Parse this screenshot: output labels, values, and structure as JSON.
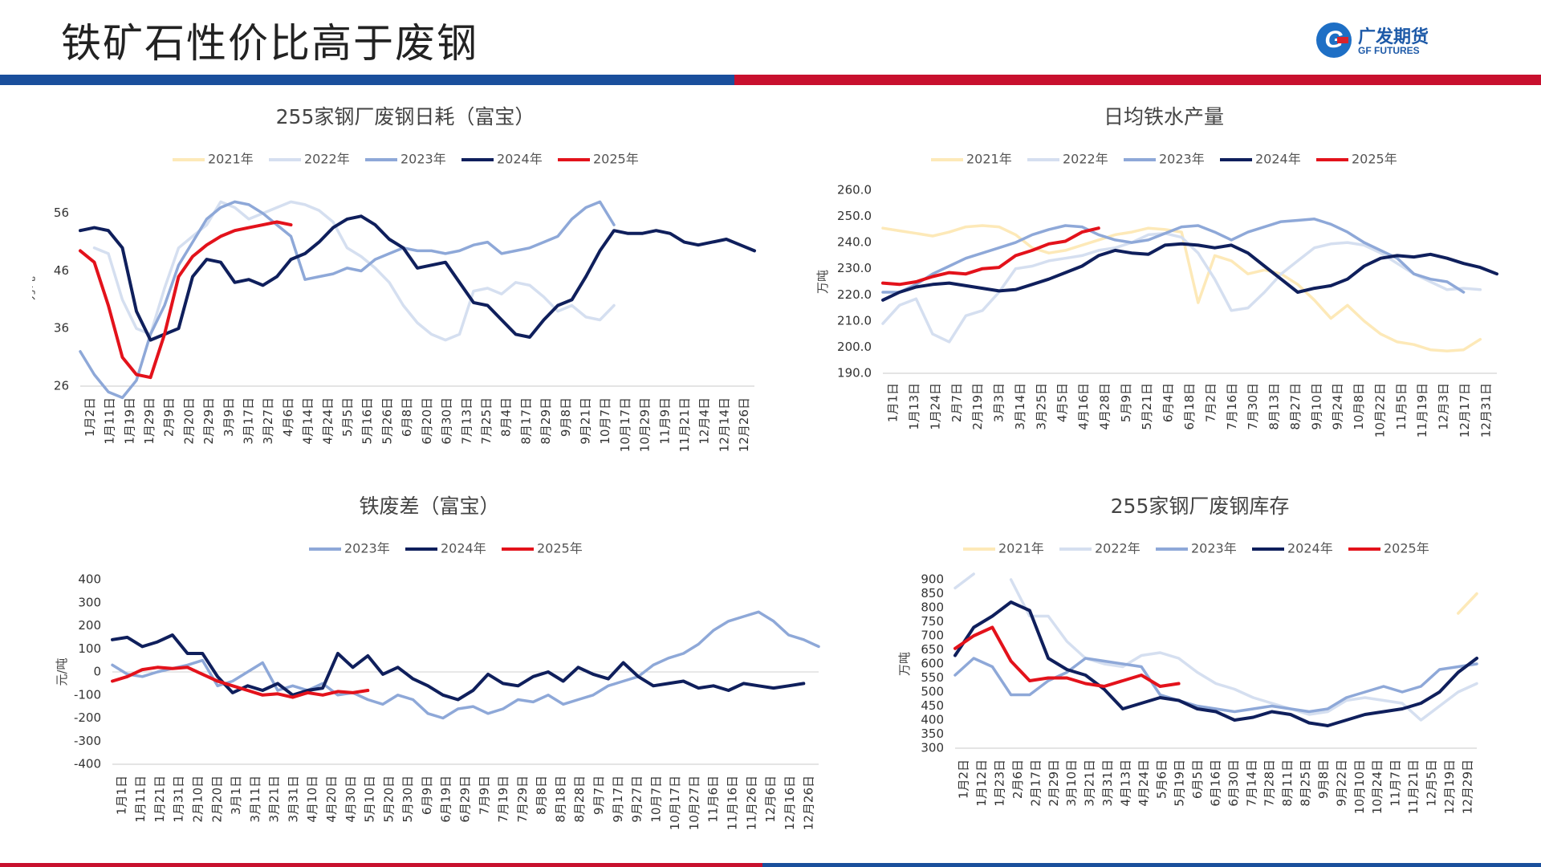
{
  "page": {
    "title": "铁矿石性价比高于废钢",
    "logo_cn": "广发期货",
    "logo_en": "GF FUTURES",
    "colors": {
      "top_band_blue": "#1a4f9c",
      "top_band_red": "#c8102e",
      "bottom_band_red": "#c8102e",
      "bottom_band_blue": "#1a4f9c"
    }
  },
  "chart_data": [
    {
      "type": "line",
      "title": "255家钢厂废钢日耗（富宝）",
      "ylabel": "万吨",
      "ylim": [
        26,
        60
      ],
      "yticks": [
        26,
        36,
        46,
        56
      ],
      "x_labels": [
        "1月2日",
        "1月11日",
        "1月19日",
        "1月29日",
        "2月9日",
        "2月20日",
        "2月29日",
        "3月9日",
        "3月17日",
        "3月27日",
        "4月6日",
        "4月14日",
        "4月24日",
        "5月5日",
        "5月16日",
        "5月26日",
        "6月8日",
        "6月20日",
        "6月30日",
        "7月13日",
        "7月25日",
        "8月4日",
        "8月17日",
        "8月29日",
        "9月8日",
        "9月21日",
        "10月7日",
        "10月17日",
        "10月29日",
        "11月9日",
        "11月21日",
        "12月4日",
        "12月14日",
        "12月26日"
      ],
      "legend": "top",
      "series": [
        {
          "name": "2021年",
          "color": "#fde9b8",
          "values": []
        },
        {
          "name": "2022年",
          "color": "#d5dff0",
          "values": [
            null,
            50.0,
            49.0,
            41.0,
            36.0,
            35.0,
            43.0,
            50.0,
            52.0,
            54.0,
            58.0,
            57.0,
            55.0,
            56.0,
            57.0,
            58.0,
            57.5,
            56.5,
            54.5,
            50.0,
            48.5,
            46.5,
            44.0,
            40.0,
            37.0,
            35.0,
            34.0,
            35.0,
            42.5,
            43.0,
            42.0,
            44.0,
            43.5,
            41.5,
            39.0,
            40.0,
            38.0,
            37.5,
            40.0
          ]
        },
        {
          "name": "2023年",
          "color": "#8ea8d8",
          "values": [
            32.0,
            28.0,
            25.0,
            24.0,
            27.0,
            35.0,
            40.0,
            47.0,
            51.0,
            55.0,
            57.0,
            58.0,
            57.5,
            56.0,
            54.0,
            52.0,
            44.5,
            45.0,
            45.5,
            46.5,
            46.0,
            48.0,
            49.0,
            50.0,
            49.5,
            49.5,
            49.0,
            49.5,
            50.5,
            51.0,
            49.0,
            49.5,
            50.0,
            51.0,
            52.0,
            55.0,
            57.0,
            58.0,
            54.0
          ]
        },
        {
          "name": "2024年",
          "color": "#0f1f5c",
          "values": [
            53.0,
            53.5,
            53.0,
            50.0,
            39.0,
            34.0,
            35.0,
            36.0,
            45.0,
            48.0,
            47.5,
            44.0,
            44.5,
            43.5,
            45.0,
            48.0,
            49.0,
            51.0,
            53.5,
            55.0,
            55.5,
            54.0,
            51.5,
            50.0,
            46.5,
            47.0,
            47.5,
            44.0,
            40.5,
            40.0,
            37.5,
            35.0,
            34.5,
            37.5,
            40.0,
            41.0,
            45.0,
            49.5,
            53.0,
            52.5,
            52.5,
            53.0,
            52.5,
            51.0,
            50.5,
            51.0,
            51.5,
            50.5,
            49.5
          ]
        },
        {
          "name": "2025年",
          "color": "#e3121b",
          "values": [
            49.5,
            47.5,
            40.0,
            31.0,
            28.0,
            27.5,
            35.0,
            45.0,
            48.5,
            50.5,
            52.0,
            53.0,
            53.5,
            54.0,
            54.5,
            54.0
          ]
        }
      ]
    },
    {
      "type": "line",
      "title": "日均铁水产量",
      "ylabel": "万吨",
      "ylim": [
        190,
        260
      ],
      "yticks": [
        "190.0",
        "200.0",
        "210.0",
        "220.0",
        "230.0",
        "240.0",
        "250.0",
        "260.0"
      ],
      "x_labels": [
        "1月1日",
        "1月13日",
        "1月24日",
        "2月7日",
        "2月19日",
        "3月3日",
        "3月14日",
        "3月25日",
        "4月5日",
        "4月16日",
        "4月28日",
        "5月9日",
        "5月21日",
        "6月4日",
        "6月18日",
        "7月2日",
        "7月16日",
        "7月30日",
        "8月13日",
        "8月27日",
        "9月10日",
        "9月24日",
        "10月8日",
        "10月22日",
        "11月5日",
        "11月19日",
        "12月3日",
        "12月17日",
        "12月31日"
      ],
      "legend": "top",
      "series": [
        {
          "name": "2021年",
          "color": "#fde9b8",
          "values": [
            245.5,
            244.5,
            243.5,
            242.5,
            244.0,
            246.0,
            246.5,
            246.0,
            243.0,
            238.0,
            236.0,
            237.0,
            239.0,
            241.0,
            243.0,
            244.0,
            245.5,
            245.0,
            244.0,
            217.0,
            235.0,
            233.0,
            228.0,
            229.5,
            228.0,
            224.0,
            218.0,
            211.0,
            216.0,
            210.0,
            205.0,
            202.0,
            201.0,
            199.0,
            198.5,
            199.0,
            203.0
          ]
        },
        {
          "name": "2022年",
          "color": "#d5dff0",
          "values": [
            209.0,
            216.0,
            218.5,
            205.0,
            202.0,
            212.0,
            214.0,
            221.0,
            230.0,
            231.0,
            233.0,
            234.0,
            235.0,
            237.0,
            238.0,
            240.0,
            243.0,
            243.5,
            242.0,
            236.0,
            226.0,
            214.0,
            215.0,
            221.0,
            228.0,
            233.0,
            238.0,
            239.5,
            240.0,
            239.0,
            236.0,
            232.0,
            228.0,
            225.0,
            222.0,
            222.5,
            222.0
          ]
        },
        {
          "name": "2023年",
          "color": "#8ea8d8",
          "values": [
            221.0,
            221.0,
            224.0,
            228.0,
            231.0,
            234.0,
            236.0,
            238.0,
            240.0,
            243.0,
            245.0,
            246.5,
            246.0,
            243.0,
            241.0,
            240.0,
            241.0,
            243.5,
            246.0,
            246.5,
            244.0,
            241.0,
            244.0,
            246.0,
            248.0,
            248.5,
            249.0,
            247.0,
            244.0,
            240.0,
            237.0,
            234.0,
            228.0,
            226.0,
            225.0,
            221.0
          ]
        },
        {
          "name": "2024年",
          "color": "#0f1f5c",
          "values": [
            218.0,
            221.0,
            223.0,
            224.0,
            224.5,
            223.5,
            222.5,
            221.5,
            222.0,
            224.0,
            226.0,
            228.5,
            231.0,
            235.0,
            237.0,
            236.0,
            235.5,
            239.0,
            239.5,
            239.0,
            238.0,
            239.0,
            236.0,
            231.0,
            226.0,
            221.0,
            222.5,
            223.5,
            226.0,
            231.0,
            234.0,
            235.0,
            234.5,
            235.5,
            234.0,
            232.0,
            230.5,
            228.0
          ]
        },
        {
          "name": "2025年",
          "color": "#e3121b",
          "values": [
            224.5,
            224.0,
            225.0,
            227.0,
            228.5,
            228.0,
            230.0,
            230.5,
            235.0,
            237.0,
            239.5,
            240.5,
            244.0,
            245.5
          ]
        }
      ]
    },
    {
      "type": "line",
      "title": "铁废差（富宝）",
      "ylabel": "元/吨",
      "ylim": [
        -400,
        400
      ],
      "yticks": [
        -400,
        -300,
        -200,
        -100,
        0,
        100,
        200,
        300,
        400
      ],
      "x_labels": [
        "1月1日",
        "1月11日",
        "1月21日",
        "1月31日",
        "2月10日",
        "2月20日",
        "3月1日",
        "3月11日",
        "3月21日",
        "3月31日",
        "4月10日",
        "4月20日",
        "4月30日",
        "5月10日",
        "5月20日",
        "5月30日",
        "6月9日",
        "6月19日",
        "6月29日",
        "7月9日",
        "7月19日",
        "7月29日",
        "8月8日",
        "8月18日",
        "8月28日",
        "9月7日",
        "9月17日",
        "9月27日",
        "10月7日",
        "10月17日",
        "10月27日",
        "11月6日",
        "11月16日",
        "11月26日",
        "12月6日",
        "12月16日",
        "12月26日"
      ],
      "legend": "top",
      "series": [
        {
          "name": "2023年",
          "color": "#8ea8d8",
          "values": [
            30.0,
            -10.0,
            -20.0,
            0.0,
            15.0,
            30.0,
            50.0,
            -60.0,
            -40.0,
            0.0,
            40.0,
            -80.0,
            -60.0,
            -80.0,
            -50.0,
            -100.0,
            -90.0,
            -120.0,
            -140.0,
            -100.0,
            -120.0,
            -180.0,
            -200.0,
            -160.0,
            -150.0,
            -180.0,
            -160.0,
            -120.0,
            -130.0,
            -100.0,
            -140.0,
            -120.0,
            -100.0,
            -60.0,
            -40.0,
            -20.0,
            30.0,
            60.0,
            80.0,
            120.0,
            180.0,
            220.0,
            240.0,
            260.0,
            220.0,
            160.0,
            140.0,
            110.0
          ]
        },
        {
          "name": "2024年",
          "color": "#0f1f5c",
          "values": [
            140.0,
            150.0,
            110.0,
            130.0,
            160.0,
            80.0,
            80.0,
            -20.0,
            -90.0,
            -60.0,
            -80.0,
            -50.0,
            -100.0,
            -80.0,
            -70.0,
            80.0,
            20.0,
            70.0,
            -10.0,
            20.0,
            -30.0,
            -60.0,
            -100.0,
            -120.0,
            -80.0,
            -10.0,
            -50.0,
            -60.0,
            -20.0,
            0.0,
            -40.0,
            20.0,
            -10.0,
            -30.0,
            40.0,
            -20.0,
            -60.0,
            -50.0,
            -40.0,
            -70.0,
            -60.0,
            -80.0,
            -50.0,
            -60.0,
            -70.0,
            -60.0,
            -50.0
          ]
        },
        {
          "name": "2025年",
          "color": "#e3121b",
          "values": [
            -40.0,
            -20.0,
            10.0,
            20.0,
            15.0,
            20.0,
            -10.0,
            -40.0,
            -60.0,
            -80.0,
            -100.0,
            -95.0,
            -110.0,
            -90.0,
            -100.0,
            -85.0,
            -90.0,
            -80.0
          ]
        }
      ]
    },
    {
      "type": "line",
      "title": "255家钢厂废钢库存",
      "ylabel": "万吨",
      "ylim": [
        300,
        900
      ],
      "yticks": [
        300,
        350,
        400,
        450,
        500,
        550,
        600,
        650,
        700,
        750,
        800,
        850,
        900
      ],
      "x_labels": [
        "1月2日",
        "1月12日",
        "1月23日",
        "2月6日",
        "2月17日",
        "2月29日",
        "3月10日",
        "3月21日",
        "3月31日",
        "4月13日",
        "4月24日",
        "5月6日",
        "5月19日",
        "6月5日",
        "6月16日",
        "6月30日",
        "7月14日",
        "7月28日",
        "8月11日",
        "8月25日",
        "9月8日",
        "9月22日",
        "10月10日",
        "10月24日",
        "11月7日",
        "11月21日",
        "12月5日",
        "12月19日",
        "12月29日"
      ],
      "legend": "top",
      "series": [
        {
          "name": "2021年",
          "color": "#fde9b8",
          "values": [
            null,
            null,
            null,
            null,
            null,
            null,
            null,
            null,
            null,
            null,
            null,
            null,
            null,
            null,
            null,
            null,
            null,
            null,
            null,
            null,
            null,
            null,
            null,
            null,
            null,
            null,
            null,
            780.0,
            850.0
          ]
        },
        {
          "name": "2022年",
          "color": "#d5dff0",
          "values": [
            870.0,
            920.0,
            null,
            900.0,
            770.0,
            770.0,
            680.0,
            620.0,
            600.0,
            590.0,
            630.0,
            640.0,
            620.0,
            570.0,
            530.0,
            510.0,
            480.0,
            460.0,
            440.0,
            420.0,
            430.0,
            470.0,
            480.0,
            470.0,
            460.0,
            400.0,
            450.0,
            500.0,
            530.0
          ]
        },
        {
          "name": "2023年",
          "color": "#8ea8d8",
          "values": [
            560.0,
            620.0,
            590.0,
            490.0,
            490.0,
            540.0,
            570.0,
            620.0,
            610.0,
            600.0,
            590.0,
            490.0,
            470.0,
            450.0,
            440.0,
            430.0,
            440.0,
            450.0,
            440.0,
            430.0,
            440.0,
            480.0,
            500.0,
            520.0,
            500.0,
            520.0,
            580.0,
            590.0,
            600.0
          ]
        },
        {
          "name": "2024年",
          "color": "#0f1f5c",
          "values": [
            630.0,
            730.0,
            770.0,
            820.0,
            790.0,
            620.0,
            580.0,
            560.0,
            510.0,
            440.0,
            460.0,
            480.0,
            470.0,
            440.0,
            430.0,
            400.0,
            410.0,
            430.0,
            420.0,
            390.0,
            380.0,
            400.0,
            420.0,
            430.0,
            440.0,
            460.0,
            500.0,
            570.0,
            620.0
          ]
        },
        {
          "name": "2025年",
          "color": "#e3121b",
          "values": [
            655.0,
            700.0,
            730.0,
            610.0,
            540.0,
            550.0,
            550.0,
            530.0,
            520.0,
            540.0,
            560.0,
            520.0,
            530.0
          ]
        }
      ]
    }
  ]
}
